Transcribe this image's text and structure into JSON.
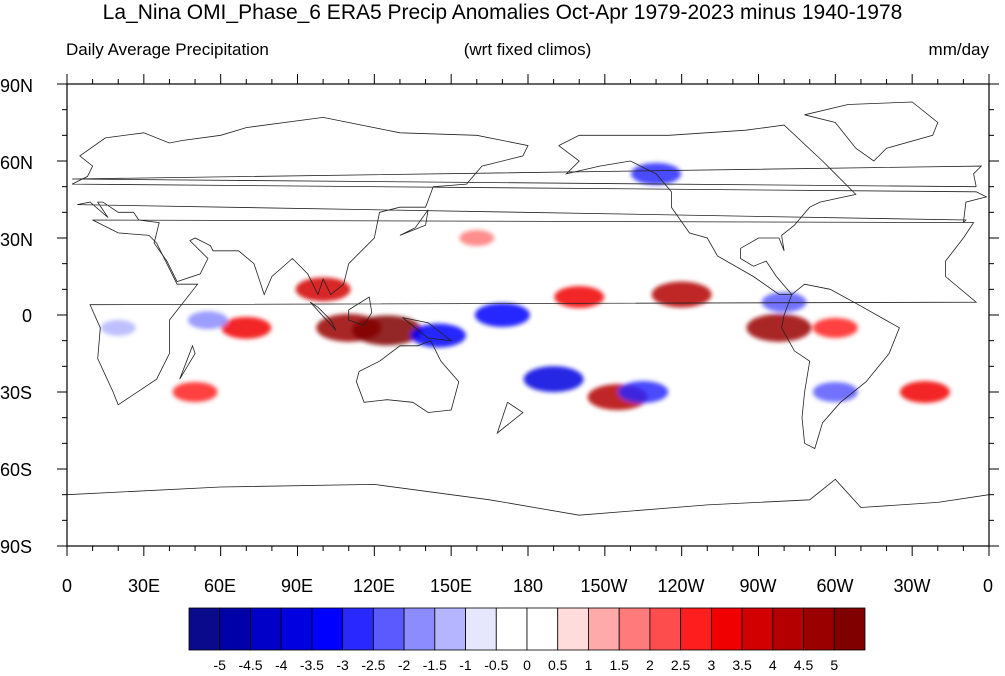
{
  "title": "La_Nina OMI_Phase_6 ERA5 Precip Anomalies Oct-Apr 1979-2023 minus 1940-1978",
  "subtitle_left": "Daily Average Precipitation",
  "subtitle_center": "(wrt fixed climos)",
  "subtitle_right": "mm/day",
  "lat_labels": [
    "90N",
    "60N",
    "30N",
    "0",
    "30S",
    "60S",
    "90S"
  ],
  "lon_labels": [
    "0",
    "30E",
    "60E",
    "90E",
    "120E",
    "150E",
    "180",
    "150W",
    "120W",
    "90W",
    "60W",
    "30W",
    "0"
  ],
  "colorbar": {
    "labels": [
      "-5",
      "-4.5",
      "-4",
      "-3.5",
      "-3",
      "-2.5",
      "-2",
      "-1.5",
      "-1",
      "-0.5",
      "0",
      "0.5",
      "1",
      "1.5",
      "2",
      "2.5",
      "3",
      "3.5",
      "4",
      "4.5",
      "5"
    ],
    "colors": [
      "#0a0a8c",
      "#0000a8",
      "#0000c8",
      "#0000e0",
      "#0000ff",
      "#2828ff",
      "#5a5aff",
      "#8c8cff",
      "#b4b4ff",
      "#e6e6ff",
      "#ffffff",
      "#ffffff",
      "#ffdcdc",
      "#ffaaaa",
      "#ff7a7a",
      "#ff4c4c",
      "#ff1e1e",
      "#f00000",
      "#d20000",
      "#b40000",
      "#9a0000",
      "#800000"
    ]
  },
  "chart_data": {
    "type": "heatmap",
    "units": "mm/day",
    "lon_range": [
      0,
      360
    ],
    "lat_range": [
      -90,
      90
    ],
    "color_levels": [
      -5,
      -4.5,
      -4,
      -3.5,
      -3,
      -2.5,
      -2,
      -1.5,
      -1,
      -0.5,
      0,
      0.5,
      1,
      1.5,
      2,
      2.5,
      3,
      3.5,
      4,
      4.5,
      5
    ],
    "anomaly_features": [
      {
        "lon": 110,
        "lat": -5,
        "value": 4.5
      },
      {
        "lon": 125,
        "lat": -6,
        "value": 5
      },
      {
        "lon": 70,
        "lat": -5,
        "value": 3
      },
      {
        "lon": 100,
        "lat": 10,
        "value": 3.5
      },
      {
        "lon": 170,
        "lat": 0,
        "value": -3.5
      },
      {
        "lon": 145,
        "lat": -8,
        "value": -3.5
      },
      {
        "lon": 55,
        "lat": -2,
        "value": -2
      },
      {
        "lon": 20,
        "lat": -5,
        "value": -1.5
      },
      {
        "lon": 240,
        "lat": 8,
        "value": 4
      },
      {
        "lon": 200,
        "lat": 7,
        "value": 3
      },
      {
        "lon": 190,
        "lat": -25,
        "value": -4
      },
      {
        "lon": 215,
        "lat": -32,
        "value": 4
      },
      {
        "lon": 225,
        "lat": -30,
        "value": -3
      },
      {
        "lon": 280,
        "lat": 5,
        "value": -2.5
      },
      {
        "lon": 278,
        "lat": -5,
        "value": 4.5
      },
      {
        "lon": 300,
        "lat": -5,
        "value": 2.5
      },
      {
        "lon": 335,
        "lat": -30,
        "value": 3
      },
      {
        "lon": 300,
        "lat": -30,
        "value": -2.5
      },
      {
        "lon": 230,
        "lat": 55,
        "value": -3
      },
      {
        "lon": 50,
        "lat": -30,
        "value": 2.5
      },
      {
        "lon": 160,
        "lat": 30,
        "value": 1.5
      }
    ]
  }
}
